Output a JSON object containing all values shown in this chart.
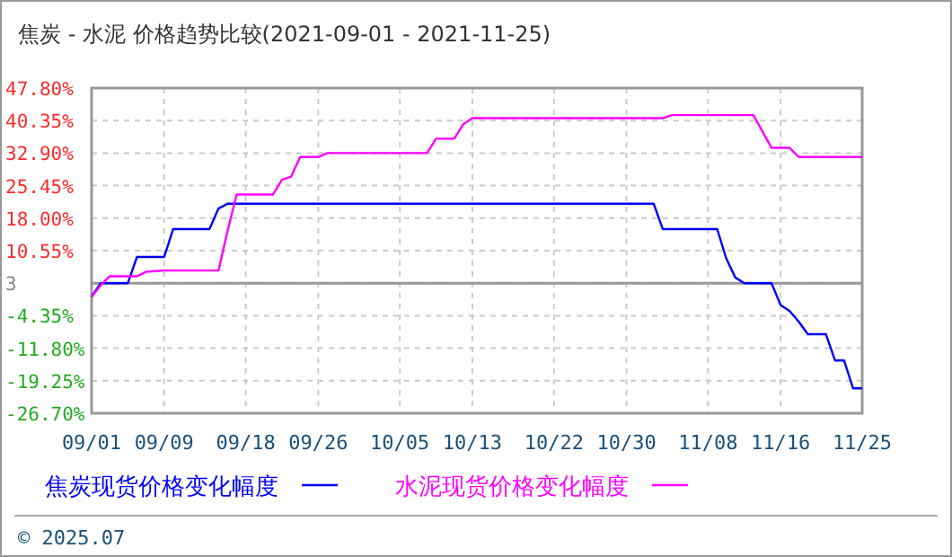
{
  "chart_data": {
    "type": "line",
    "title": "焦炭 - 水泥 价格趋势比较(2021-09-01 - 2021-11-25)",
    "xlim": [
      "2021-09-01",
      "2021-11-25"
    ],
    "xticks": [
      {
        "value": "2021-09-01",
        "label": "09/01"
      },
      {
        "value": "2021-09-09",
        "label": "09/09"
      },
      {
        "value": "2021-09-18",
        "label": "09/18"
      },
      {
        "value": "2021-09-26",
        "label": "09/26"
      },
      {
        "value": "2021-10-05",
        "label": "10/05"
      },
      {
        "value": "2021-10-13",
        "label": "10/13"
      },
      {
        "value": "2021-10-22",
        "label": "10/22"
      },
      {
        "value": "2021-10-30",
        "label": "10/30"
      },
      {
        "value": "2021-11-08",
        "label": "11/08"
      },
      {
        "value": "2021-11-16",
        "label": "11/16"
      },
      {
        "value": "2021-11-25",
        "label": "11/25"
      }
    ],
    "ylim": [
      -26.7,
      47.8
    ],
    "yticks": [
      {
        "value": 47.8,
        "label": "47.80%"
      },
      {
        "value": 40.35,
        "label": "40.35%"
      },
      {
        "value": 32.9,
        "label": "32.90%"
      },
      {
        "value": 25.45,
        "label": "25.45%"
      },
      {
        "value": 18,
        "label": "18.00%"
      },
      {
        "value": 10.55,
        "label": "10.55%"
      },
      {
        "value": 3.1,
        "label": "3"
      },
      {
        "value": -4.35,
        "label": "-4.35%"
      },
      {
        "value": -11.8,
        "label": "-11.80%"
      },
      {
        "value": -19.25,
        "label": "-19.25%"
      },
      {
        "value": -26.7,
        "label": "-26.70%"
      }
    ],
    "ref_lines": [
      {
        "axis": "y",
        "value": 3.1,
        "color": "#999999"
      }
    ],
    "grid": true,
    "legend": "bottom",
    "line_style": "solid",
    "marker": "none",
    "annotations": [
      "© 2025.07"
    ],
    "series": [
      {
        "name": "焦炭现货价格变化幅度",
        "color": "#0000ff",
        "x": [
          "2021-09-01",
          "2021-09-02",
          "2021-09-05",
          "2021-09-06",
          "2021-09-09",
          "2021-09-10",
          "2021-09-14",
          "2021-09-15",
          "2021-09-16",
          "2021-11-02",
          "2021-11-03",
          "2021-11-09",
          "2021-11-10",
          "2021-11-11",
          "2021-11-12",
          "2021-11-15",
          "2021-11-16",
          "2021-11-17",
          "2021-11-18",
          "2021-11-19",
          "2021-11-21",
          "2021-11-22",
          "2021-11-23",
          "2021-11-24",
          "2021-11-25"
        ],
        "values": [
          0,
          3.1,
          3.1,
          9.1,
          9.1,
          15.5,
          15.5,
          20.2,
          21.3,
          21.3,
          15.5,
          15.5,
          8.8,
          4.4,
          3.1,
          3.1,
          -1.9,
          -3.3,
          -5.7,
          -8.6,
          -8.6,
          -14.6,
          -14.6,
          -21.0,
          -21.0
        ]
      },
      {
        "name": "水泥现货价格变化幅度",
        "color": "#ff00ff",
        "x": [
          "2021-09-01",
          "2021-09-02",
          "2021-09-03",
          "2021-09-06",
          "2021-09-07",
          "2021-09-09",
          "2021-09-15",
          "2021-09-16",
          "2021-09-17",
          "2021-09-21",
          "2021-09-22",
          "2021-09-23",
          "2021-09-24",
          "2021-09-26",
          "2021-09-27",
          "2021-10-08",
          "2021-10-09",
          "2021-10-11",
          "2021-10-12",
          "2021-10-13",
          "2021-11-03",
          "2021-11-04",
          "2021-11-13",
          "2021-11-15",
          "2021-11-17",
          "2021-11-18",
          "2021-11-25"
        ],
        "values": [
          0,
          2.6,
          4.7,
          4.7,
          5.7,
          6.0,
          6.0,
          15.1,
          23.4,
          23.4,
          26.8,
          27.5,
          32.0,
          32.0,
          32.9,
          32.9,
          36.2,
          36.2,
          39.5,
          40.9,
          40.9,
          41.6,
          41.6,
          34.1,
          34.1,
          32.0,
          32.0
        ]
      }
    ]
  }
}
